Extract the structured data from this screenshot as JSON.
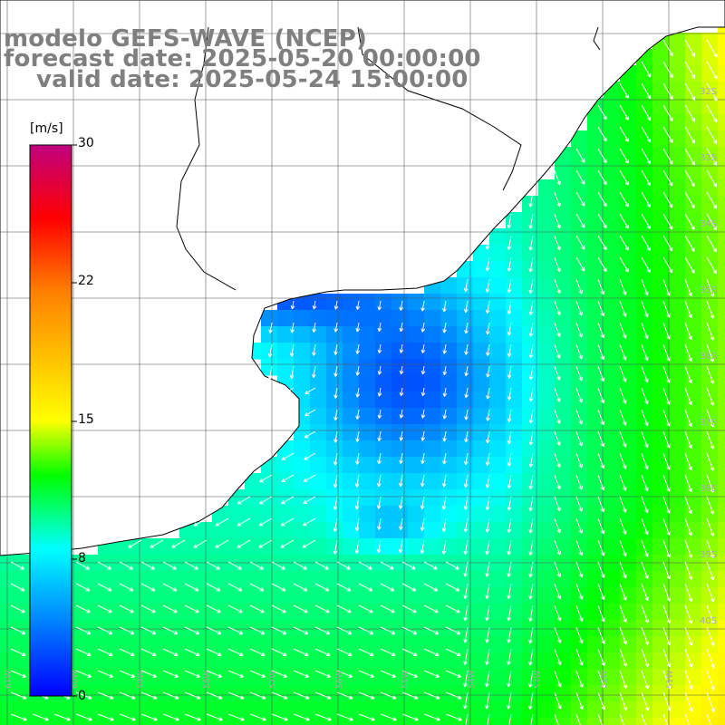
{
  "title": {
    "line1": "modelo GEFS-WAVE (NCEP)",
    "line2": "forecast date: 2025-05-20 00:00:00",
    "line3": "valid date: 2025-05-24 15:00:00"
  },
  "colorbar": {
    "unit": "[m/s]",
    "ticks": [
      "30",
      "22",
      "15",
      "8",
      "0"
    ],
    "min": 0,
    "max": 30,
    "stops": [
      {
        "value": 0,
        "color": "#0000ff"
      },
      {
        "value": 4,
        "color": "#0080ff"
      },
      {
        "value": 8,
        "color": "#00ffff"
      },
      {
        "value": 12,
        "color": "#00ff00"
      },
      {
        "value": 15,
        "color": "#ffff00"
      },
      {
        "value": 22,
        "color": "#ff8000"
      },
      {
        "value": 26,
        "color": "#ff0000"
      },
      {
        "value": 30,
        "color": "#c0007f"
      }
    ]
  },
  "map": {
    "variable": "wind speed and direction",
    "land_color": "#ffffff",
    "coastline_color": "#000000",
    "grid_color": "#555555",
    "arrow_color": "#ffffff",
    "longitude_labels": [
      "61W",
      "60W",
      "59W",
      "58W",
      "57W",
      "56W",
      "55W",
      "54W",
      "53W",
      "52W",
      "51W"
    ],
    "latitude_labels": [
      "32S",
      "33S",
      "34S",
      "35S",
      "36S",
      "37S",
      "38S",
      "39S",
      "40S"
    ]
  }
}
